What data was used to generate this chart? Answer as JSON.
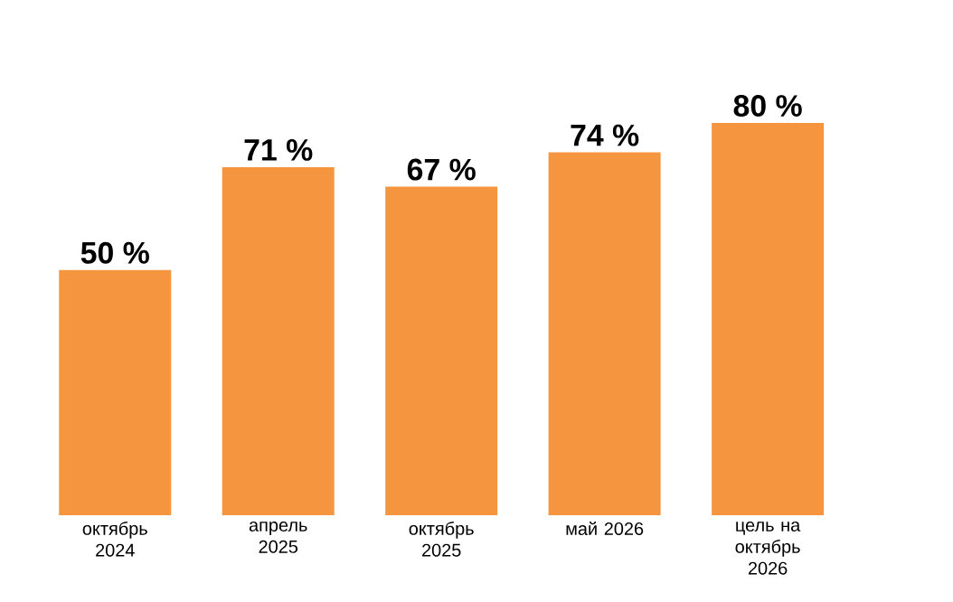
{
  "chart_data": {
    "type": "bar",
    "categories": [
      "октябрь 2024",
      "апрель 2025",
      "октябрь 2025",
      "май 2026",
      "цель на октябрь 2026"
    ],
    "values": [
      50,
      71,
      67,
      74,
      80
    ],
    "value_labels": [
      "50 %",
      "71 %",
      "67 %",
      "74 %",
      "80 %"
    ],
    "color": "#f5953f"
  }
}
